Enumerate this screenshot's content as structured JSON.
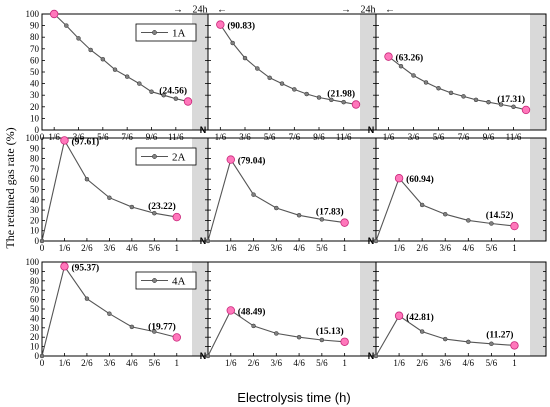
{
  "chart_data": {
    "type": "line",
    "ylabel": "The retained gas rate (%)",
    "xlabel": "Electrolysis time (h)",
    "ylim": [
      0,
      100
    ],
    "yticks": [
      0,
      10,
      20,
      30,
      40,
      50,
      60,
      70,
      80,
      90,
      100
    ],
    "break_label": "N",
    "headers": [
      {
        "label": "24h",
        "left_arrow": "→",
        "right_arrow": "←"
      },
      {
        "label": "24h",
        "left_arrow": "→",
        "right_arrow": "←"
      }
    ],
    "colors": {
      "line": "#555555",
      "point_fill": "#808080",
      "endpoint_fill": "#ff77bb",
      "endpoint_stroke": "#c8277a",
      "shade": "#d9d9d9"
    },
    "rows": [
      {
        "legend": "1A",
        "xticks": [
          "0",
          "1/6",
          "3/6",
          "5/6",
          "7/6",
          "9/6",
          "11/6"
        ],
        "xticks_short": [
          "0",
          "1/6",
          "3/6",
          "5/6",
          "7/6",
          "9/6",
          "11/6"
        ],
        "xmax": 2.0,
        "panels": [
          {
            "x": [
              0.1667,
              0.3333,
              0.5,
              0.6667,
              0.8333,
              1.0,
              1.1667,
              1.3333,
              1.5,
              1.6667,
              1.8333,
              2.0
            ],
            "y": [
              100,
              90,
              79,
              69,
              61,
              52,
              46,
              40,
              33,
              30,
              27,
              24.56
            ],
            "peak_label": "",
            "end_label": "(24.56)"
          },
          {
            "x": [
              0.1667,
              0.3333,
              0.5,
              0.6667,
              0.8333,
              1.0,
              1.1667,
              1.3333,
              1.5,
              1.6667,
              1.8333,
              2.0
            ],
            "y": [
              90.83,
              75,
              62,
              53,
              45,
              40,
              35,
              31,
              28,
              26,
              24,
              21.98
            ],
            "peak_label": "(90.83)",
            "end_label": "(21.98)"
          },
          {
            "x": [
              0.1667,
              0.3333,
              0.5,
              0.6667,
              0.8333,
              1.0,
              1.1667,
              1.3333,
              1.5,
              1.6667,
              1.8333,
              2.0
            ],
            "y": [
              63.26,
              55,
              47,
              41,
              36,
              32,
              29,
              26,
              24,
              22,
              20,
              17.31
            ],
            "peak_label": "(63.26)",
            "end_label": "(17.31)"
          }
        ]
      },
      {
        "legend": "2A",
        "xticks": [
          "0",
          "1/6",
          "2/6",
          "3/6",
          "4/6",
          "5/6",
          "1"
        ],
        "xticks_short": [
          "0",
          "1/6",
          "2/6",
          "3/6",
          "4/6",
          "5/6",
          "1"
        ],
        "xmax": 1.0833,
        "panels": [
          {
            "x": [
              0,
              0.1667,
              0.3333,
              0.5,
              0.6667,
              0.8333,
              1.0
            ],
            "y": [
              0,
              97.61,
              60,
              42,
              33,
              27,
              23.22
            ],
            "peak_label": "(97.61)",
            "end_label": "(23.22)"
          },
          {
            "x": [
              0,
              0.1667,
              0.3333,
              0.5,
              0.6667,
              0.8333,
              1.0
            ],
            "y": [
              0,
              79.04,
              45,
              32,
              25,
              21,
              17.83
            ],
            "peak_label": "(79.04)",
            "end_label": "(17.83)"
          },
          {
            "x": [
              0,
              0.1667,
              0.3333,
              0.5,
              0.6667,
              0.8333,
              1.0
            ],
            "y": [
              0,
              60.94,
              35,
              26,
              20,
              17,
              14.52
            ],
            "peak_label": "(60.94)",
            "end_label": "(14.52)"
          }
        ]
      },
      {
        "legend": "4A",
        "xticks": [
          "0",
          "1/6",
          "2/6",
          "3/6",
          "4/6",
          "5/6",
          "1"
        ],
        "xticks_short": [
          "0",
          "1/6",
          "2/6",
          "3/6",
          "4/6",
          "5/6",
          "1"
        ],
        "xmax": 1.0833,
        "panels": [
          {
            "x": [
              0,
              0.1667,
              0.3333,
              0.5,
              0.6667,
              0.8333,
              1.0
            ],
            "y": [
              0,
              95.37,
              61,
              45,
              31,
              26,
              19.77
            ],
            "peak_label": "(95.37)",
            "end_label": "(19.77)"
          },
          {
            "x": [
              0,
              0.1667,
              0.3333,
              0.5,
              0.6667,
              0.8333,
              1.0
            ],
            "y": [
              0,
              48.49,
              32,
              24,
              20,
              17,
              15.13
            ],
            "peak_label": "(48.49)",
            "end_label": "(15.13)"
          },
          {
            "x": [
              0,
              0.1667,
              0.3333,
              0.5,
              0.6667,
              0.8333,
              1.0
            ],
            "y": [
              0,
              42.81,
              26,
              18,
              15,
              13,
              11.27
            ],
            "peak_label": "(42.81)",
            "end_label": "(11.27)"
          }
        ]
      }
    ]
  }
}
